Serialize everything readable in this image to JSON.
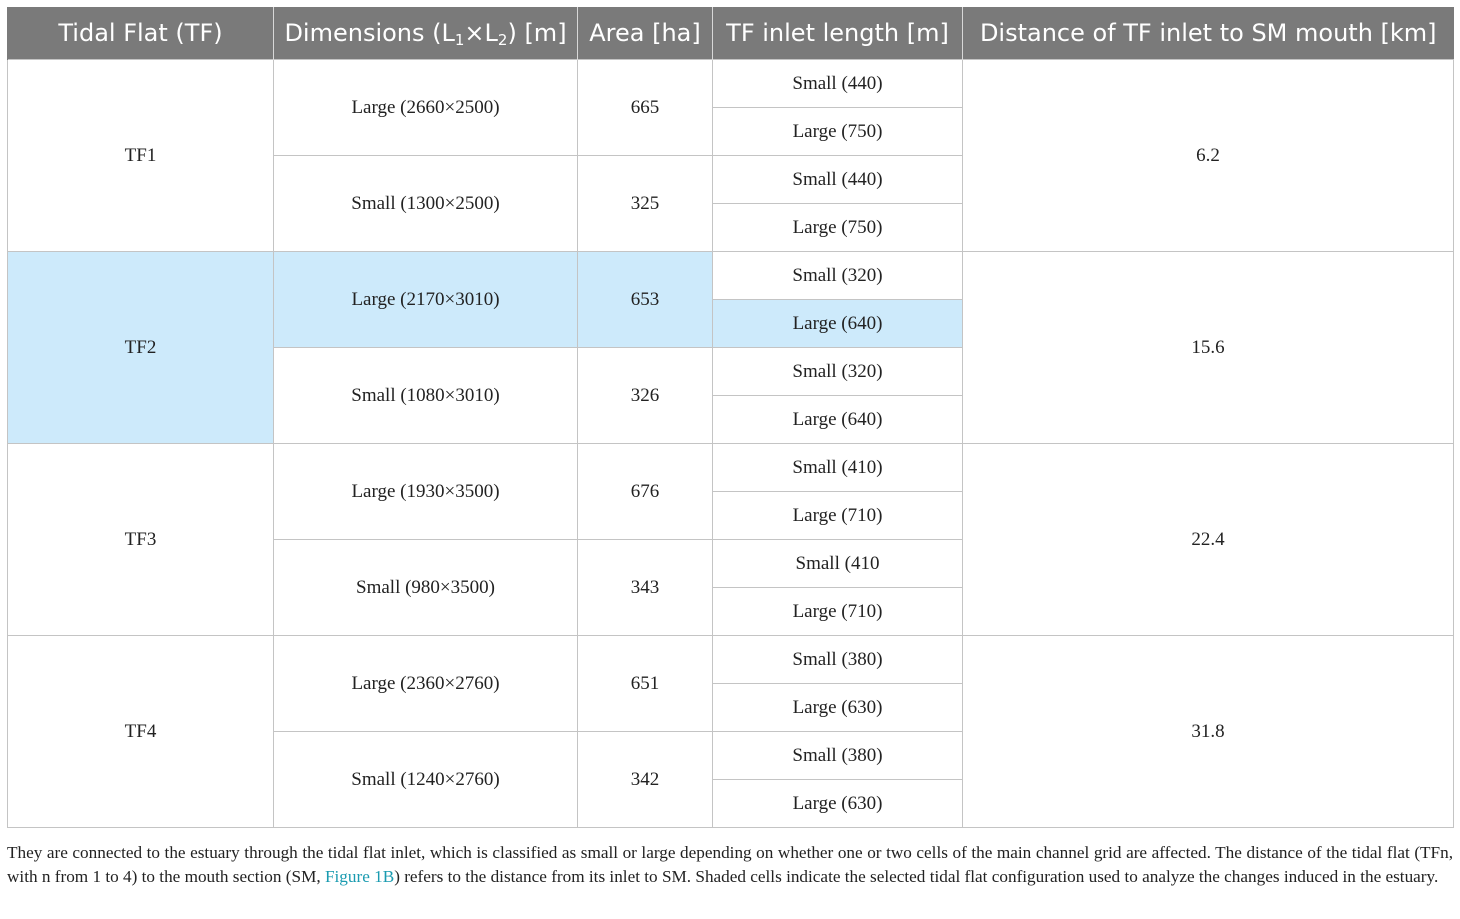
{
  "table": {
    "headers": {
      "col1": "Tidal Flat (TF)",
      "col2_main": "Dimensions (L",
      "col2_sub1": "1",
      "col2_mid": "×L",
      "col2_sub2": "2",
      "col2_end": ") [m]",
      "col3": "Area [ha]",
      "col4": "TF inlet length [m]",
      "col5": "Distance of TF inlet to SM mouth [km]"
    },
    "groups": [
      {
        "name": "TF1",
        "distance": "6.2",
        "dims": [
          {
            "label": "Large (2660×2500)",
            "area": "665",
            "inlets": [
              "Small (440)",
              "Large (750)"
            ]
          },
          {
            "label": "Small (1300×2500)",
            "area": "325",
            "inlets": [
              "Small (440)",
              "Large (750)"
            ]
          }
        ]
      },
      {
        "name": "TF2",
        "distance": "15.6",
        "dims": [
          {
            "label": "Large (2170×3010)",
            "area": "653",
            "inlets": [
              "Small (320)",
              "Large (640)"
            ]
          },
          {
            "label": "Small (1080×3010)",
            "area": "326",
            "inlets": [
              "Small (320)",
              "Large (640)"
            ]
          }
        ]
      },
      {
        "name": "TF3",
        "distance": "22.4",
        "dims": [
          {
            "label": "Large (1930×3500)",
            "area": "676",
            "inlets": [
              "Small (410)",
              "Large (710)"
            ]
          },
          {
            "label": "Small (980×3500)",
            "area": "343",
            "inlets": [
              "Small (410",
              "Large (710)"
            ]
          }
        ]
      },
      {
        "name": "TF4",
        "distance": "31.8",
        "dims": [
          {
            "label": "Large (2360×2760)",
            "area": "651",
            "inlets": [
              "Small (380)",
              "Large (630)"
            ]
          },
          {
            "label": "Small (1240×2760)",
            "area": "342",
            "inlets": [
              "Small (380)",
              "Large (630)"
            ]
          }
        ]
      }
    ]
  },
  "caption": {
    "before_link": "They are connected to the estuary through the tidal flat inlet, which is classified as small or large depending on whether one or two cells of the main channel grid are affected. The distance of the tidal flat (TFn, with n from 1 to 4) to the mouth section (SM, ",
    "link": "Figure 1B",
    "after_link": ") refers to the distance from its inlet to SM. Shaded cells indicate the selected tidal flat configuration used to analyze the changes induced in the estuary."
  },
  "colors": {
    "header_bg": "#7a7a7a",
    "highlight": "#cdeafb",
    "link": "#1a9bb0"
  }
}
